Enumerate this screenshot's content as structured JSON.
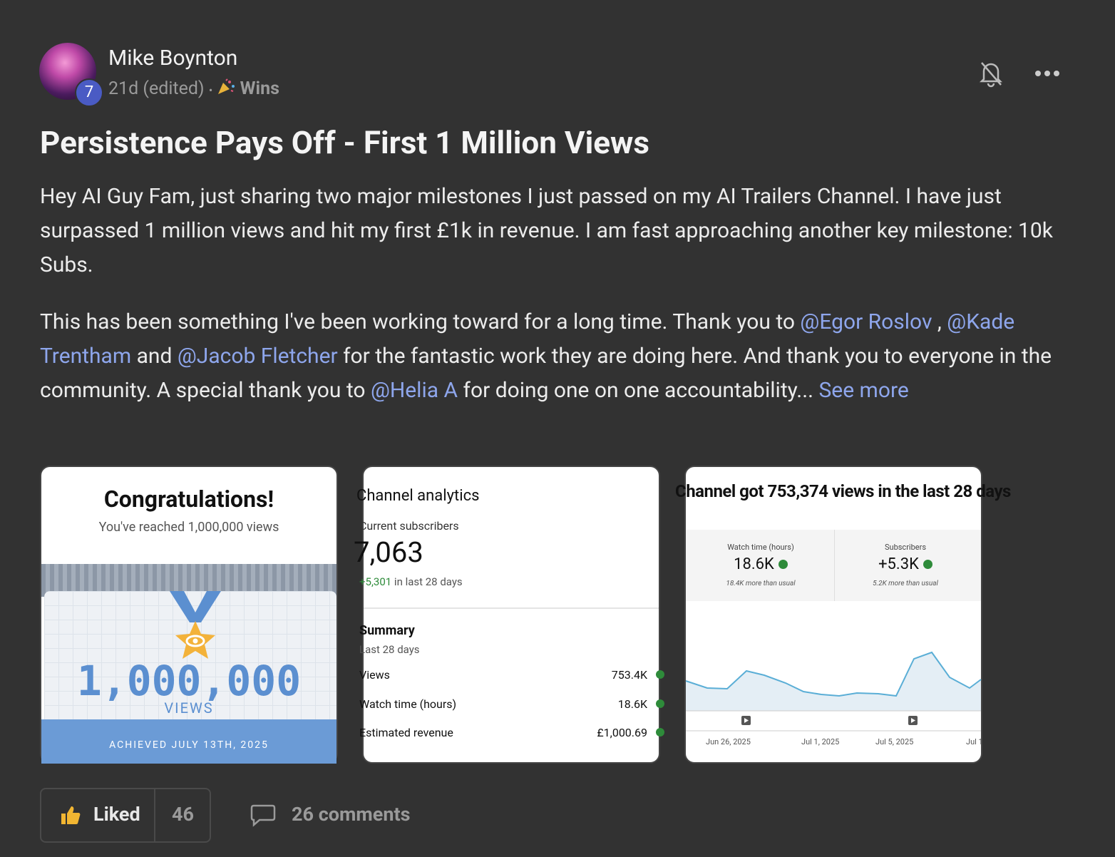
{
  "post": {
    "author": "Mike Boynton",
    "level": "7",
    "time": "21d (edited)",
    "separator": "•",
    "category": "Wins",
    "title": "Persistence Pays Off - First 1 Million Views",
    "paragraph1": "Hey AI Guy Fam, just sharing two major milestones I just passed on my AI Trailers Channel. I have just surpassed 1 million views and hit my first £1k in revenue. I am fast approaching another key milestone: 10k Subs.",
    "paragraph2": [
      {
        "text": "This has been something I've been working toward for a long time. Thank you to "
      },
      {
        "mention": "@Egor Roslov"
      },
      {
        "text": " , "
      },
      {
        "mention": "@Kade Trentham"
      },
      {
        "text": " and "
      },
      {
        "mention": "@Jacob Fletcher"
      },
      {
        "text": " for the fantastic work they are doing here. And thank you to everyone in the community. A special thank you to "
      },
      {
        "mention": "@Helia A"
      },
      {
        "text": " for doing one on one accountability... "
      }
    ],
    "see_more": "See more",
    "images": [
      {
        "heading": "Congratulations!",
        "subheading": "You've reached 1,000,000 views",
        "number": "1,000,000",
        "unit": "VIEWS",
        "footer": "ACHIEVED JULY 13TH, 2025"
      },
      {
        "heading": "Channel analytics",
        "subscribers_label": "Current subscribers",
        "subscribers": "7,063",
        "change": "+5,301",
        "change_period": "in last 28 days",
        "summary": "Summary",
        "summary_period": "Last 28 days",
        "rows": [
          [
            "Views",
            "753.4K"
          ],
          [
            "Watch time (hours)",
            "18.6K"
          ],
          [
            "Estimated revenue",
            "£1,000.69"
          ]
        ]
      },
      {
        "heading": "Channel got 753,374 views in the last 28 days",
        "stats": [
          {
            "label": "Watch time (hours)",
            "value": "18.6K",
            "note": "18.4K more than usual"
          },
          {
            "label": "Subscribers",
            "value": "+5.3K",
            "note": "5.2K more than usual"
          }
        ],
        "dates": [
          "Jun 26, 2025",
          "Jul 1, 2025",
          "Jul 5, 2025",
          "Jul 1"
        ]
      }
    ],
    "like_label": "Liked",
    "like_count": "46",
    "comments": "26 comments"
  }
}
